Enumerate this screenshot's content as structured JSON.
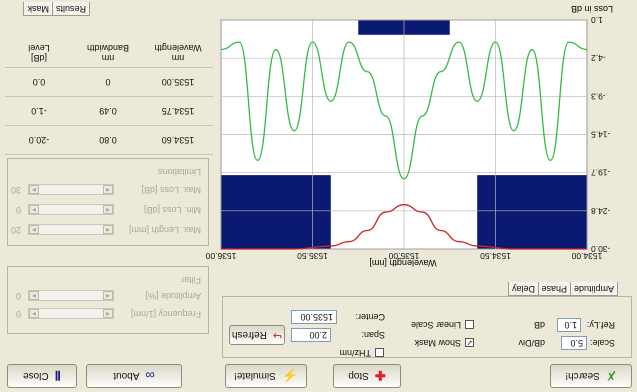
{
  "toolbar": {
    "search": "Search!",
    "stop": "Stop",
    "simulate": "Simulate!",
    "about": "About",
    "close": "Close"
  },
  "settings": {
    "scale_label": "Scale:",
    "scale_value": "5.0",
    "scale_unit": "dB/Div",
    "ref_label": "Ref.Ly:",
    "ref_value": "1.0",
    "ref_unit": "dB",
    "show_mask": "Show Mask",
    "show_mask_checked": true,
    "linear_scale": "Linear Scale",
    "linear_scale_checked": false,
    "thz_label": "THz/nm",
    "span_label": "Span:",
    "span_value": "2.00",
    "center_label": "Center:",
    "center_value": "1535.00",
    "refresh": "Refresh"
  },
  "display_tabs": [
    "Amplitude",
    "Phase",
    "Delay"
  ],
  "chart_data": {
    "type": "line",
    "title": "Wavelength [nm]",
    "ylabel": "Loss in dB",
    "x_ticks": [
      "1534.00",
      "1534.50",
      "1535.00",
      "1535.50",
      "1536.00"
    ],
    "y_ticks": [
      "-30.0",
      "-24.8",
      "-19.7",
      "-14.5",
      "-9.3",
      "-4.2",
      "1.0"
    ],
    "xlim": [
      1534.0,
      1536.0
    ],
    "ylim": [
      -30.0,
      1.0
    ],
    "grid": true,
    "mask": {
      "color": "#0a1a72",
      "passband": [
        1534.75,
        1535.25
      ],
      "passband_max_loss_db": -1.0,
      "stopband_edges": [
        1534.6,
        1535.4
      ],
      "stopband_min_loss_db": -20.0
    },
    "series": [
      {
        "color": "#33bb44",
        "x": [
          1534.0,
          1534.1,
          1534.2,
          1534.3,
          1534.4,
          1534.5,
          1534.6,
          1534.7,
          1534.8,
          1534.9,
          1535.0,
          1535.1,
          1535.2,
          1535.3,
          1535.4,
          1535.5,
          1535.6,
          1535.7,
          1535.8,
          1535.9,
          1536.0
        ],
        "y": [
          -3.0,
          -2.0,
          -18.0,
          -3.0,
          -14.0,
          -2.0,
          -10.0,
          -2.0,
          -6.0,
          -12.0,
          -20.5,
          -12.0,
          -6.0,
          -2.0,
          -10.0,
          -2.0,
          -14.0,
          -3.0,
          -18.0,
          -2.0,
          -3.0
        ]
      },
      {
        "color": "#cc2222",
        "x": [
          1534.0,
          1534.2,
          1534.4,
          1534.6,
          1534.7,
          1534.8,
          1534.9,
          1535.0,
          1535.1,
          1535.2,
          1535.3,
          1535.4,
          1535.6,
          1535.8,
          1536.0
        ],
        "y": [
          -30.0,
          -30.0,
          -30.0,
          -29.6,
          -29.0,
          -27.5,
          -25.0,
          -24.0,
          -25.0,
          -27.5,
          -29.0,
          -29.6,
          -30.0,
          -30.0,
          -30.0
        ]
      }
    ]
  },
  "sliders": {
    "frequency_label": "Frequency [1/nm]",
    "frequency_value": "0",
    "amplitude_label": "Amplitude [%]",
    "amplitude_value": "0",
    "group_label": "Filter",
    "max_length_label": "Max. Length [mm]",
    "max_length_value": "20",
    "min_loss_label": "Min. Loss [dB]",
    "min_loss_value": "0",
    "max_loss_label": "Max. Loss [dB]",
    "max_loss_value": "30",
    "limits_label": "Limitations"
  },
  "results": {
    "headers": [
      [
        "Wavelength",
        "nm"
      ],
      [
        "Bandwidth",
        "nm"
      ],
      [
        "Level",
        "[dB]"
      ]
    ],
    "rows": [
      [
        "1535.00",
        "0",
        "0.0"
      ],
      [
        "1534.75",
        "0.49",
        "-1.0"
      ],
      [
        "1534.60",
        "0.80",
        "-20.0"
      ]
    ]
  },
  "result_tabs": [
    "Mask",
    "Results"
  ]
}
